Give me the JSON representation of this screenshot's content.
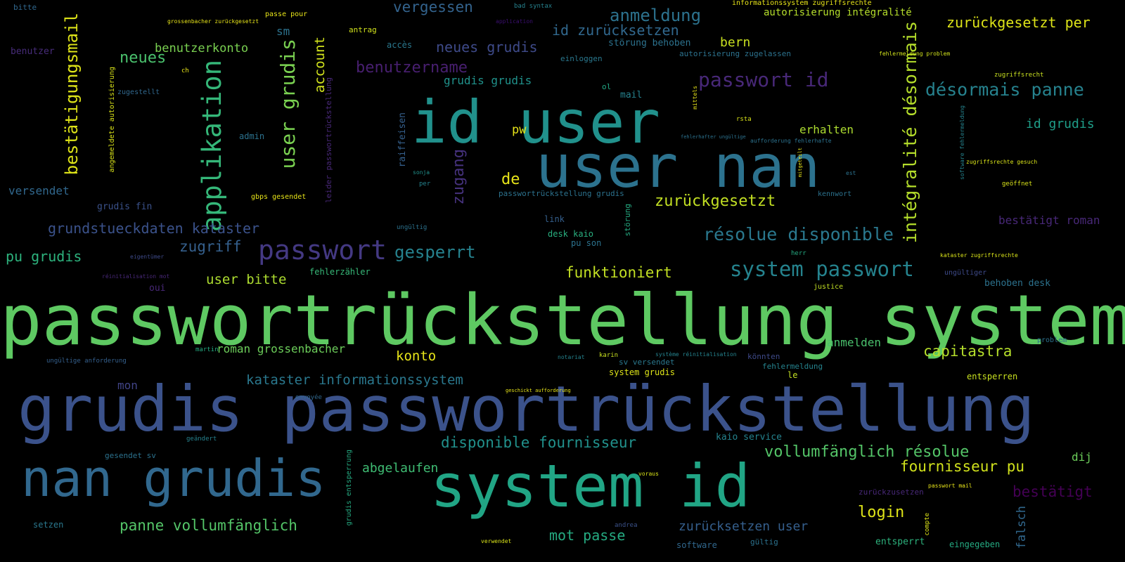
{
  "words": [
    {
      "text": "passwortrückstellung system",
      "color": "#5ec962"
    },
    {
      "text": "grudis passwortrückstellung",
      "color": "#3b528b"
    },
    {
      "text": "user nan",
      "color": "#2c728e"
    },
    {
      "text": "id user",
      "color": "#21918c"
    },
    {
      "text": "system id",
      "color": "#21a585"
    },
    {
      "text": "nan grudis",
      "color": "#31688e"
    },
    {
      "text": "passwort",
      "color": "#443983"
    },
    {
      "text": "applikation",
      "color": "#35b779"
    },
    {
      "text": "passwort id",
      "color": "#482878"
    },
    {
      "text": "intégralité désormais",
      "color": "#b5de2b"
    },
    {
      "text": "user grudis",
      "color": "#7ad151"
    },
    {
      "text": "bestätigungsmail",
      "color": "#dde318"
    },
    {
      "text": "system passwort",
      "color": "#25838e"
    },
    {
      "text": "résolue disponible",
      "color": "#2a788e"
    },
    {
      "text": "désormais panne",
      "color": "#26828e"
    },
    {
      "text": "anmeldung",
      "color": "#2c728e"
    },
    {
      "text": "id zurücksetzen",
      "color": "#31688e"
    },
    {
      "text": "zurückgesetzt per",
      "color": "#dde318"
    },
    {
      "text": "benutzername",
      "color": "#481f70"
    },
    {
      "text": "neues grudis",
      "color": "#3e4a89"
    },
    {
      "text": "vergessen",
      "color": "#33638d"
    },
    {
      "text": "neues",
      "color": "#4ac16d"
    },
    {
      "text": "benutzerkonto",
      "color": "#7ad151"
    },
    {
      "text": "zurückgesetzt",
      "color": "#c2df23"
    },
    {
      "text": "gesperrt",
      "color": "#26828e"
    },
    {
      "text": "zugang",
      "color": "#46327e"
    },
    {
      "text": "grundstueckdaten kataster",
      "color": "#3b528b"
    },
    {
      "text": "zugriff",
      "color": "#35608d"
    },
    {
      "text": "funktioniert",
      "color": "#c2df23"
    },
    {
      "text": "disponible fournisseur",
      "color": "#21918c"
    },
    {
      "text": "vollumfänglich résolue",
      "color": "#54c568"
    },
    {
      "text": "fournisseur pu",
      "color": "#d0e11c"
    },
    {
      "text": "panne vollumfänglich",
      "color": "#54c568"
    },
    {
      "text": "kataster informationssystem",
      "color": "#2a788e"
    },
    {
      "text": "pu grudis",
      "color": "#2db27d"
    },
    {
      "text": "de",
      "color": "#e7e419"
    },
    {
      "text": "pw",
      "color": "#e7e419"
    },
    {
      "text": "account",
      "color": "#d0e11c"
    },
    {
      "text": "sm",
      "color": "#2c728e"
    },
    {
      "text": "id grudis",
      "color": "#1f9e89"
    },
    {
      "text": "grudis grudis",
      "color": "#20928c"
    },
    {
      "text": "bern",
      "color": "#c8e020"
    },
    {
      "text": "versendet",
      "color": "#31688e"
    },
    {
      "text": "user bitte",
      "color": "#addc30"
    },
    {
      "text": "bestätigt roman",
      "color": "#482878"
    },
    {
      "text": "bestätigt",
      "color": "#440154"
    },
    {
      "text": "capitastra",
      "color": "#b5de2b"
    },
    {
      "text": "login",
      "color": "#dde318"
    },
    {
      "text": "konto",
      "color": "#e7e419"
    },
    {
      "text": "abgelaufen",
      "color": "#3fbc73"
    },
    {
      "text": "mot passe",
      "color": "#25ab82"
    },
    {
      "text": "zurücksetzen user",
      "color": "#355f8d"
    },
    {
      "text": "roman grossenbacher",
      "color": "#6ccd5a"
    },
    {
      "text": "anmelden",
      "color": "#4ac16d"
    },
    {
      "text": "erhalten",
      "color": "#addc30"
    },
    {
      "text": "mon",
      "color": "#414487"
    },
    {
      "text": "falsch",
      "color": "#31688e"
    },
    {
      "text": "dij",
      "color": "#6ccd5a"
    },
    {
      "text": "autorisierung intégralité",
      "color": "#b5de2b"
    },
    {
      "text": "grudis fin",
      "color": "#3b528b"
    },
    {
      "text": "behoben desk",
      "color": "#2c728e"
    },
    {
      "text": "benutzer",
      "color": "#472c7a"
    },
    {
      "text": "antrag",
      "color": "#d0e11c"
    },
    {
      "text": "zugriffsrecht",
      "color": "#c8e020"
    },
    {
      "text": "autorisierung zugelassen",
      "color": "#2c728e"
    },
    {
      "text": "störung behoben",
      "color": "#2c728e"
    },
    {
      "text": "einloggen",
      "color": "#2a788e"
    },
    {
      "text": "bitte",
      "color": "#31688e"
    },
    {
      "text": "accès",
      "color": "#2a788e"
    },
    {
      "text": "informationssystem zugriffsrechte",
      "color": "#e7e419"
    },
    {
      "text": "grossenbacher zurückgesetzt",
      "color": "#e7e419"
    },
    {
      "text": "passe pour",
      "color": "#e7e419"
    },
    {
      "text": "admin",
      "color": "#2c728e"
    },
    {
      "text": "mail",
      "color": "#26828e"
    },
    {
      "text": "ol",
      "color": "#22a884"
    },
    {
      "text": "raiffeisen",
      "color": "#35608d"
    },
    {
      "text": "leider passwortrückstellung",
      "color": "#482878"
    },
    {
      "text": "angemeldete autorisierung",
      "color": "#d8e219"
    },
    {
      "text": "gbps gesendet",
      "color": "#e7e419"
    },
    {
      "text": "passwortrückstellung grudis",
      "color": "#2c728e"
    },
    {
      "text": "link",
      "color": "#35608d"
    },
    {
      "text": "desk kaio",
      "color": "#29af7f"
    },
    {
      "text": "pu son",
      "color": "#2c728e"
    },
    {
      "text": "störung",
      "color": "#25ab82"
    },
    {
      "text": "fehlerzähler",
      "color": "#37b878"
    },
    {
      "text": "oui",
      "color": "#482878"
    },
    {
      "text": "system grudis",
      "color": "#dde318"
    },
    {
      "text": "sv versendet",
      "color": "#2a788e"
    },
    {
      "text": "kaio service",
      "color": "#25838e"
    },
    {
      "text": "entsperren",
      "color": "#c8e020"
    },
    {
      "text": "entsperrt",
      "color": "#2db27d"
    },
    {
      "text": "eingegeben",
      "color": "#25ab82"
    },
    {
      "text": "gültig",
      "color": "#2c728e"
    },
    {
      "text": "software",
      "color": "#31688e"
    },
    {
      "text": "setzen",
      "color": "#2a788e"
    },
    {
      "text": "gesendet sv",
      "color": "#2c728e"
    },
    {
      "text": "geändert",
      "color": "#26828e"
    },
    {
      "text": "grudis entsperrung",
      "color": "#25ab82"
    },
    {
      "text": "verwendet",
      "color": "#d8e219"
    },
    {
      "text": "andrea",
      "color": "#3b528b"
    },
    {
      "text": "voraus",
      "color": "#d8e219"
    },
    {
      "text": "le",
      "color": "#c2df23"
    },
    {
      "text": "fehlermeldung",
      "color": "#25838e"
    },
    {
      "text": "könnten",
      "color": "#3e4a89"
    },
    {
      "text": "karin",
      "color": "#c8e020"
    },
    {
      "text": "justice",
      "color": "#c2df23"
    },
    {
      "text": "herr",
      "color": "#25ab82"
    },
    {
      "text": "kennwort",
      "color": "#2c728e"
    },
    {
      "text": "problem",
      "color": "#2c728e"
    },
    {
      "text": "ungültiger",
      "color": "#3e4a89"
    },
    {
      "text": "geöffnet",
      "color": "#d8e219"
    },
    {
      "text": "fehlermeldung problem",
      "color": "#d0e11c"
    },
    {
      "text": "rsta",
      "color": "#d8e219"
    },
    {
      "text": "eigentümer",
      "color": "#3e4a89"
    },
    {
      "text": "ungültig",
      "color": "#2c728e"
    },
    {
      "text": "ungültige anforderung",
      "color": "#35608d"
    },
    {
      "text": "zugestellt",
      "color": "#31688e"
    },
    {
      "text": "kataster zugriffsrechte",
      "color": "#d8e219"
    },
    {
      "text": "zugriffsrechte gesuch",
      "color": "#d8e219"
    },
    {
      "text": "bad syntax",
      "color": "#26828e"
    },
    {
      "text": "application",
      "color": "#3b0f70"
    },
    {
      "text": "ch",
      "color": "#e7e419"
    },
    {
      "text": "mittels",
      "color": "#e7e419"
    },
    {
      "text": "martin",
      "color": "#25ab82"
    },
    {
      "text": "notariat",
      "color": "#25838e"
    },
    {
      "text": "système réinitialisation",
      "color": "#25838e"
    },
    {
      "text": "réinitialisation mot",
      "color": "#482878"
    },
    {
      "text": "envoyée",
      "color": "#31688e"
    },
    {
      "text": "geschickt aufforderung",
      "color": "#e7e419"
    },
    {
      "text": "sonja",
      "color": "#21918c"
    },
    {
      "text": "per",
      "color": "#25838e"
    },
    {
      "text": "compte",
      "color": "#dde318"
    },
    {
      "text": "zurückzusetzen",
      "color": "#482878"
    },
    {
      "text": "aufforderung fehlerhafte",
      "color": "#2c728e"
    },
    {
      "text": "fehlerhafter ungültige",
      "color": "#2c728e"
    },
    {
      "text": "passwort mail",
      "color": "#e7e419"
    },
    {
      "text": "software fehlermeldung",
      "color": "#25838e"
    },
    {
      "text": "est",
      "color": "#2c728e"
    },
    {
      "text": "mitgeteilt",
      "color": "#e7e419"
    },
    {
      "text": "grudis fin",
      "color": "#3b528b"
    }
  ]
}
